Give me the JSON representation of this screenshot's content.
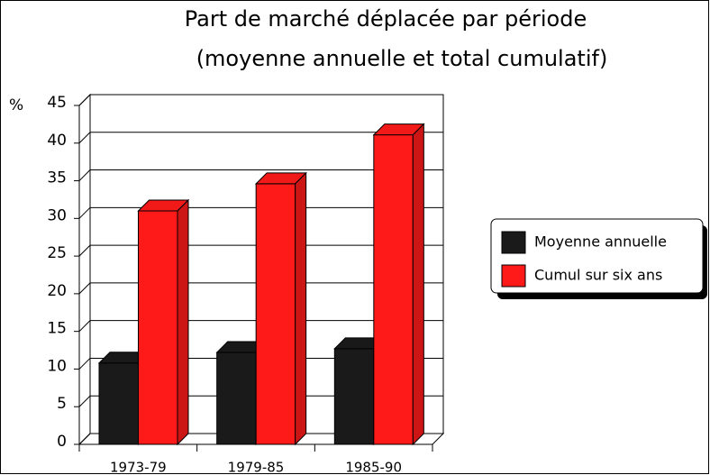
{
  "chart_data": {
    "type": "bar",
    "title": "Part de marché déplacée par période",
    "subtitle": "(moyenne annuelle et total cumulatif)",
    "y_label": "%",
    "categories": [
      "1973-79",
      "1979-85",
      "1985-90"
    ],
    "series": [
      {
        "name": "Moyenne annuelle",
        "color": "#1a1a1a",
        "values": [
          10.8,
          12.2,
          12.7
        ]
      },
      {
        "name": "Cumul sur six ans",
        "color": "#ff1a1a",
        "values": [
          31,
          34.6,
          41.1
        ]
      }
    ],
    "ylim": [
      0,
      45
    ],
    "yticks": [
      0,
      5,
      10,
      15,
      20,
      25,
      30,
      35,
      40,
      45
    ],
    "grid": true,
    "legend": "right"
  }
}
